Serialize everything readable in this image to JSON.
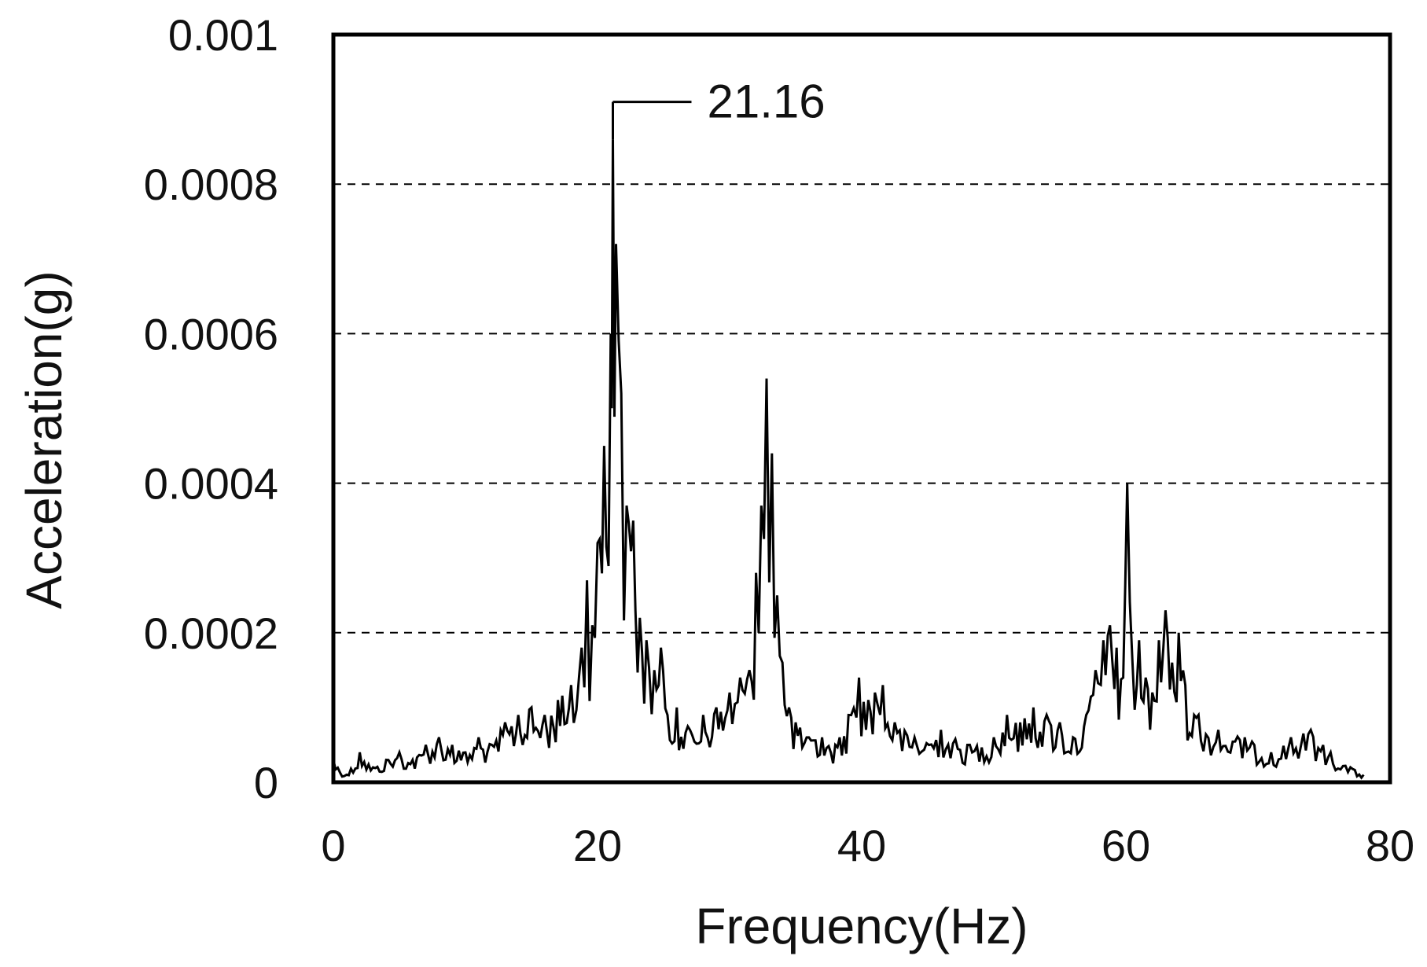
{
  "chart_data": {
    "type": "line",
    "title": "",
    "xlabel": "Frequency(Hz)",
    "ylabel": "Acceleration(g)",
    "xlim": [
      0,
      80
    ],
    "ylim": [
      0,
      0.001
    ],
    "x_ticks": [
      0,
      20,
      40,
      60,
      80
    ],
    "x_tick_labels": [
      "0",
      "20",
      "40",
      "60",
      "80"
    ],
    "y_ticks": [
      0,
      0.0002,
      0.0004,
      0.0006,
      0.0008,
      0.001
    ],
    "y_tick_labels": [
      "0",
      "0.0002",
      "0.0004",
      "0.0006",
      "0.0008",
      "0.001"
    ],
    "grid": "horizontal-dashed",
    "legend": "none",
    "line_color": "#000000",
    "annotations": [
      {
        "text": "21.16",
        "x": 21.16,
        "y": 0.00091
      }
    ],
    "series": [
      {
        "x": [
          0,
          1,
          2,
          3,
          4,
          5,
          6,
          7,
          8,
          9,
          10,
          11,
          12,
          13,
          14,
          15,
          16,
          17,
          18,
          18.8,
          19.2,
          19.6,
          20,
          20.5,
          21,
          21.16,
          21.4,
          21.8,
          22.2,
          22.7,
          23.2,
          23.7,
          24.3,
          24.8,
          25.3,
          26,
          27,
          28,
          29,
          30,
          30.8,
          31.5,
          32,
          32.4,
          32.8,
          33.2,
          33.6,
          34,
          34.5,
          35,
          36,
          37,
          38,
          39,
          39.8,
          40.5,
          41,
          41.6,
          42.5,
          44,
          46,
          48,
          50,
          51,
          52,
          53,
          54,
          55,
          56,
          57,
          57.7,
          58.3,
          58.8,
          59.3,
          59.8,
          60.1,
          60.5,
          61,
          61.5,
          62,
          62.5,
          63,
          63.5,
          64,
          64.5,
          65.5,
          67,
          69,
          71,
          72.5,
          74,
          75.5,
          77,
          78
        ],
        "y": [
          3e-05,
          1e-05,
          4e-05,
          2e-05,
          3e-05,
          4e-05,
          3e-05,
          5e-05,
          6e-05,
          5e-05,
          4e-05,
          6e-05,
          5e-05,
          8e-05,
          9e-05,
          0.0001,
          9e-05,
          0.00011,
          0.00013,
          0.00018,
          0.00027,
          0.00021,
          0.00032,
          0.00045,
          0.0006,
          0.00086,
          0.00072,
          0.00052,
          0.00037,
          0.00035,
          0.00022,
          0.00019,
          0.00015,
          0.00018,
          9e-05,
          0.0001,
          7e-05,
          9e-05,
          0.0001,
          0.00012,
          0.00014,
          0.00015,
          0.00028,
          0.00037,
          0.00054,
          0.00044,
          0.00025,
          0.00016,
          0.0001,
          8e-05,
          6e-05,
          6e-05,
          5e-05,
          9e-05,
          0.00014,
          0.00011,
          0.00012,
          0.00013,
          8e-05,
          6e-05,
          7e-05,
          5e-05,
          6e-05,
          9e-05,
          8e-05,
          0.0001,
          9e-05,
          8e-05,
          6e-05,
          9e-05,
          0.00015,
          0.00019,
          0.00021,
          0.00018,
          0.00014,
          0.0004,
          0.00016,
          0.00019,
          0.00014,
          0.00012,
          0.00019,
          0.00023,
          0.00016,
          0.0002,
          0.00013,
          9e-05,
          7e-05,
          6e-05,
          4e-05,
          6e-05,
          7e-05,
          4e-05,
          2e-05,
          1e-05
        ]
      }
    ]
  }
}
